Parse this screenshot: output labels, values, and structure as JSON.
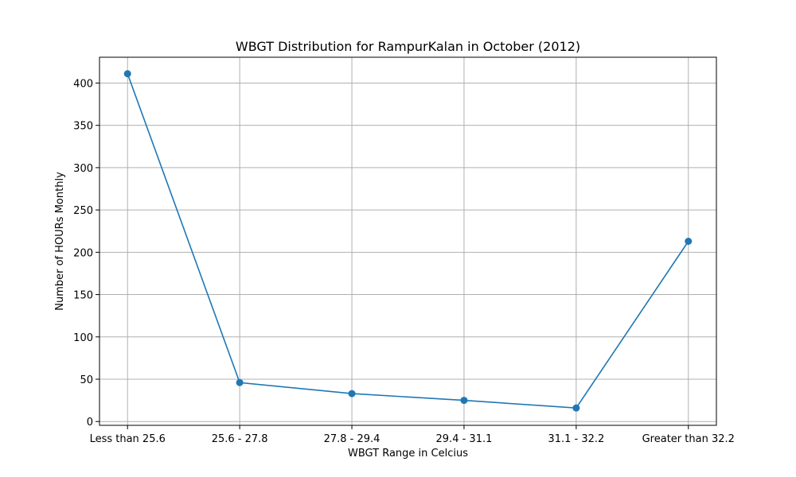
{
  "chart_data": {
    "type": "line",
    "title": "WBGT Distribution for RampurKalan in October (2012)",
    "xlabel": "WBGT Range in Celcius",
    "ylabel": "Number of HOURs Monthly",
    "categories": [
      "Less than 25.6",
      "25.6 - 27.8",
      "27.8 - 29.4",
      "29.4 - 31.1",
      "31.1 - 32.2",
      "Greater than 32.2"
    ],
    "series": [
      {
        "values": [
          411,
          46,
          33,
          25,
          16,
          213
        ],
        "color": "#1f77b4"
      }
    ],
    "yticks": [
      0,
      50,
      100,
      150,
      200,
      250,
      300,
      350,
      400
    ],
    "ylim": [
      -4.5,
      430.5
    ],
    "grid": true,
    "marker": "circle"
  }
}
